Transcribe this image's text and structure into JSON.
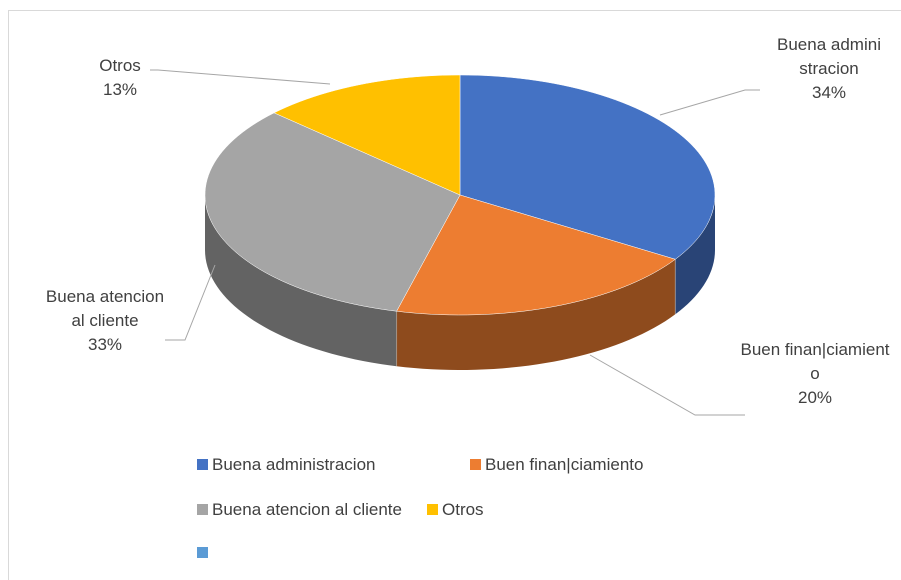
{
  "chart_data": {
    "type": "pie3d",
    "categories": [
      "Buena administracion",
      "Buen finan|ciamiento",
      "Buena atencion al cliente",
      "Otros"
    ],
    "values": [
      34,
      20,
      33,
      13
    ],
    "value_labels": [
      "34%",
      "20%",
      "33%",
      "13%"
    ],
    "colors": [
      "#4472c4",
      "#ed7d31",
      "#a5a5a5",
      "#ffc000"
    ],
    "legend": "bottom"
  }
}
